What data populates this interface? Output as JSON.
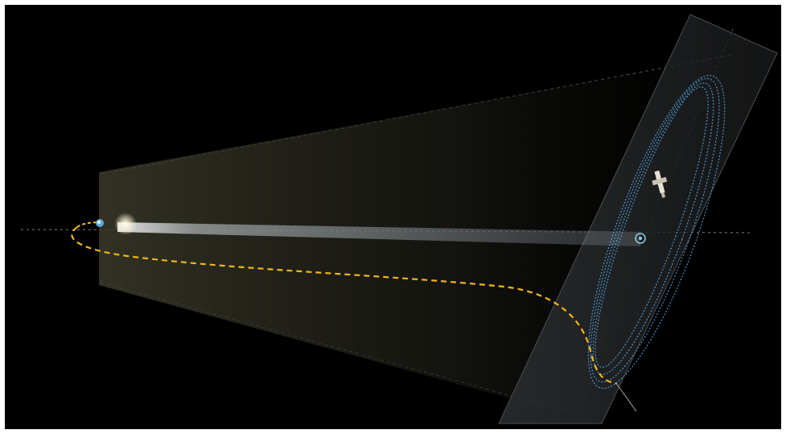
{
  "diagram": {
    "labels": {
      "trajectory": "",
      "orbit": ""
    },
    "colors": {
      "background": "#000000",
      "transfer_path": "#f2b51c",
      "halo_orbit": "#4fa3e0",
      "sun_glow": "#ffffff",
      "guide_lines": "#9aa0a6",
      "plane_tint": "#3a3a2a"
    },
    "icons": {
      "earth": "earth-icon",
      "spacecraft": "spacecraft-icon",
      "l2_point": "l2-point-icon"
    }
  }
}
